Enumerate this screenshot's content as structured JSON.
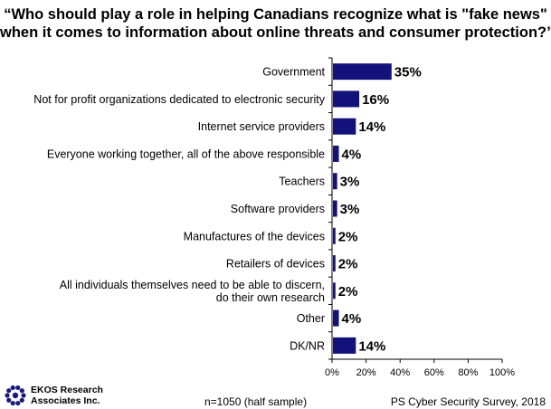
{
  "title_lines": [
    "“Who should play a role in helping Canadians recognize what is \"fake news\"",
    "when it comes to information about online threats and consumer protection?”"
  ],
  "chart_data": {
    "type": "bar",
    "orientation": "horizontal",
    "categories": [
      [
        "Government"
      ],
      [
        "Not for profit organizations dedicated to electronic security"
      ],
      [
        "Internet service providers"
      ],
      [
        "Everyone working together, all of the above responsible"
      ],
      [
        "Teachers"
      ],
      [
        "Software providers"
      ],
      [
        "Manufactures of the devices"
      ],
      [
        "Retailers of devices"
      ],
      [
        "All individuals themselves need to be able to discern,",
        "do their own research"
      ],
      [
        "Other"
      ],
      [
        "DK/NR"
      ]
    ],
    "values": [
      35,
      16,
      14,
      4,
      3,
      3,
      2,
      2,
      2,
      4,
      14
    ],
    "value_labels": [
      "35%",
      "16%",
      "14%",
      "4%",
      "3%",
      "3%",
      "2%",
      "2%",
      "2%",
      "4%",
      "14%"
    ],
    "xlim": [
      0,
      100
    ],
    "ticks": [
      0,
      20,
      40,
      60,
      80,
      100
    ],
    "tick_labels": [
      "0%",
      "20%",
      "40%",
      "60%",
      "80%",
      "100%"
    ],
    "bar_color": "#12127a",
    "grid": false
  },
  "footer": {
    "logo_lines": [
      "EKOS Research",
      "Associates Inc."
    ],
    "logo_color": "#1a1a7a",
    "sample_note": "n=1050 (half sample)",
    "source": "PS Cyber Security Survey, 2018"
  }
}
